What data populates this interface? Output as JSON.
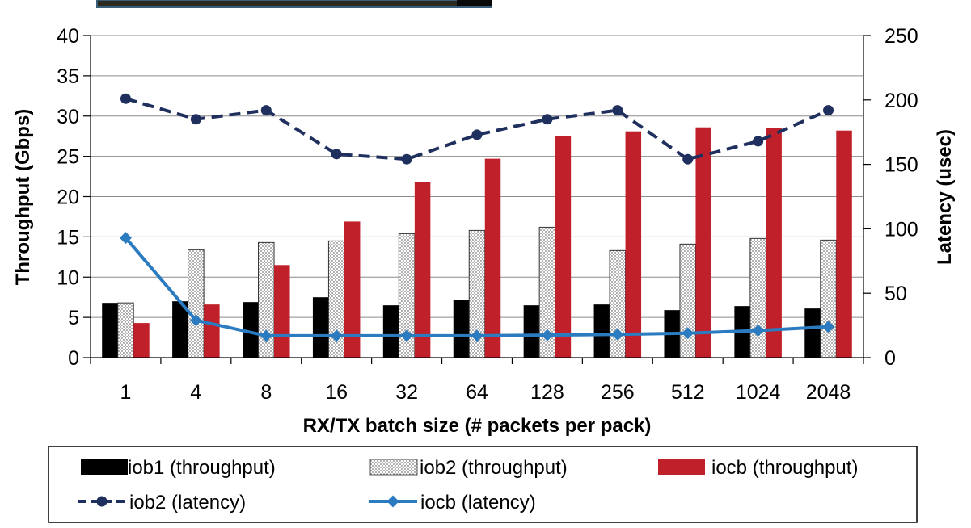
{
  "chart_data": {
    "type": "bar",
    "xlabel": "RX/TX batch size (# packets per pack)",
    "ylabel": "Throughput (Gbps)",
    "y2label": "Latency (usec)",
    "ylim": [
      0,
      40
    ],
    "y2lim": [
      0,
      250
    ],
    "yticks": [
      "0",
      "5",
      "10",
      "15",
      "20",
      "25",
      "30",
      "35",
      "40"
    ],
    "y2ticks": [
      "0",
      "50",
      "100",
      "150",
      "200",
      "250"
    ],
    "categories": [
      "1",
      "4",
      "8",
      "16",
      "32",
      "64",
      "128",
      "256",
      "512",
      "1024",
      "2048"
    ],
    "grid": "horizontal",
    "legend_position": "bottom",
    "bar_series": [
      {
        "name": "iob1 (throughput)",
        "color": "#000000",
        "pattern": "solid",
        "values": [
          6.8,
          7.0,
          6.9,
          7.5,
          6.5,
          7.2,
          6.5,
          6.6,
          5.9,
          6.4,
          6.1
        ]
      },
      {
        "name": "iob2 (throughput)",
        "color": "#ffffff",
        "pattern": "dotted",
        "values": [
          6.8,
          13.4,
          14.3,
          14.5,
          15.4,
          15.8,
          16.2,
          13.3,
          14.1,
          14.8,
          14.6
        ]
      },
      {
        "name": "iocb (throughput)",
        "color": "#c0202a",
        "pattern": "solid",
        "values": [
          4.3,
          6.6,
          11.5,
          16.9,
          21.8,
          24.7,
          27.5,
          28.1,
          28.6,
          28.5,
          28.2
        ]
      }
    ],
    "line_series": [
      {
        "name": "iob2 (latency)",
        "color": "#1f2f5e",
        "dash": "dashed",
        "marker": "circle",
        "axis": "right",
        "values": [
          201,
          185,
          192,
          158,
          154,
          173,
          185,
          192,
          154,
          168,
          192
        ]
      },
      {
        "name": "iocb (latency)",
        "color": "#2a7bc0",
        "dash": "solid",
        "marker": "diamond",
        "axis": "right",
        "values": [
          93,
          29,
          17,
          17,
          17,
          17,
          17.5,
          18,
          19,
          21,
          24
        ]
      }
    ]
  }
}
